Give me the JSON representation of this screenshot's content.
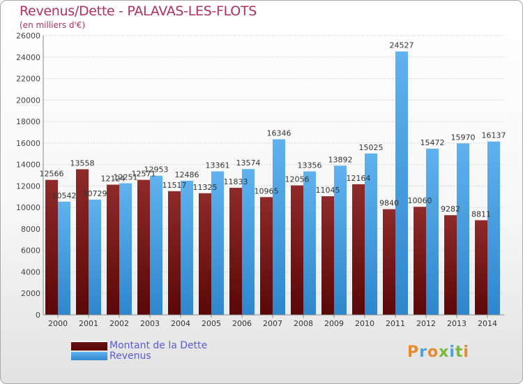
{
  "title": "Revenus/Dette - PALAVAS-LES-FLOTS",
  "subtitle": "(en milliers d'€)",
  "logo": "Proxiti",
  "legend": {
    "debt_label": "Montant de la Dette",
    "revenue_label": "Revenus"
  },
  "colors": {
    "debt": "#7a1c1c",
    "revenue": "#46a2e6",
    "title": "#b0305e",
    "legend_text": "#5a5ad8"
  },
  "chart_data": {
    "type": "bar",
    "title": "Revenus/Dette - PALAVAS-LES-FLOTS",
    "ylabel": "(en milliers d'€)",
    "ylim": [
      0,
      26000
    ],
    "yticks": [
      0,
      2000,
      4000,
      6000,
      8000,
      10000,
      12000,
      14000,
      16000,
      18000,
      20000,
      22000,
      24000,
      26000
    ],
    "grid": true,
    "legend_position": "bottom-left",
    "categories": [
      "2000",
      "2001",
      "2002",
      "2003",
      "2004",
      "2005",
      "2006",
      "2007",
      "2008",
      "2009",
      "2010",
      "2011",
      "2012",
      "2013",
      "2014"
    ],
    "series": [
      {
        "name": "Montant de la Dette",
        "values": [
          12566,
          13558,
          12124,
          12571,
          11517,
          11325,
          11833,
          10965,
          12056,
          11045,
          12164,
          9840,
          10060,
          9282,
          8811
        ],
        "labels": [
          "12566",
          "13558",
          "12124",
          "12571",
          "11517",
          "11325",
          "11833",
          "10965",
          "12056",
          "11045",
          "12164",
          "9840",
          "10060",
          "9282",
          "8811"
        ]
      },
      {
        "name": "Revenus",
        "values": [
          10542,
          10729,
          12251,
          12953,
          12486,
          13361,
          13574,
          16346,
          13356,
          13892,
          15025,
          24527,
          15472,
          15970,
          16137
        ],
        "labels": [
          "10542",
          "10729",
          "12251",
          "12953",
          "12486",
          "13361",
          "13574",
          "16346",
          "13356",
          "13892",
          "15025",
          "24527",
          "15472",
          "15970",
          "16137"
        ]
      }
    ]
  }
}
